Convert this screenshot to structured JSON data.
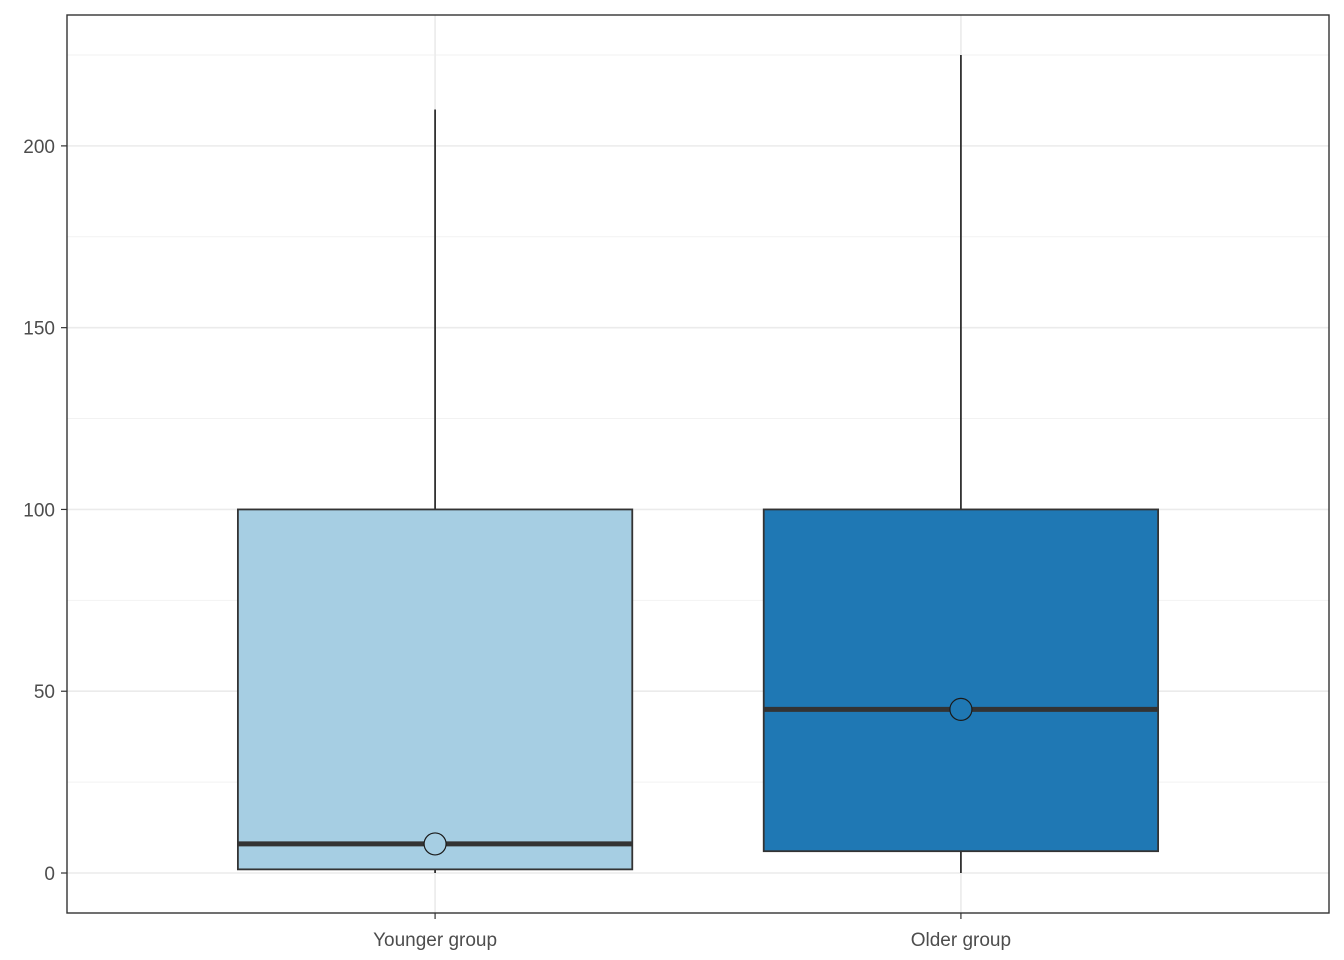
{
  "chart_data": {
    "type": "boxplot",
    "title": "",
    "xlabel": "",
    "ylabel": "",
    "categories": [
      "Younger group",
      "Older group"
    ],
    "boxes": [
      {
        "category": "Younger group",
        "whisker_low": 0,
        "q1": 1,
        "median": 8,
        "mean": 8,
        "q3": 100,
        "whisker_high": 210,
        "color": "#a6cee3"
      },
      {
        "category": "Older group",
        "whisker_low": 0,
        "q1": 6,
        "median": 45,
        "mean": 45,
        "q3": 100,
        "whisker_high": 225,
        "color": "#1f78b4"
      }
    ],
    "ylim": [
      -11,
      236
    ],
    "yticks": [
      0,
      50,
      100,
      150,
      200
    ],
    "yticks_minor": [
      25,
      75,
      125,
      175,
      225
    ],
    "grid": true,
    "legend": "none"
  }
}
